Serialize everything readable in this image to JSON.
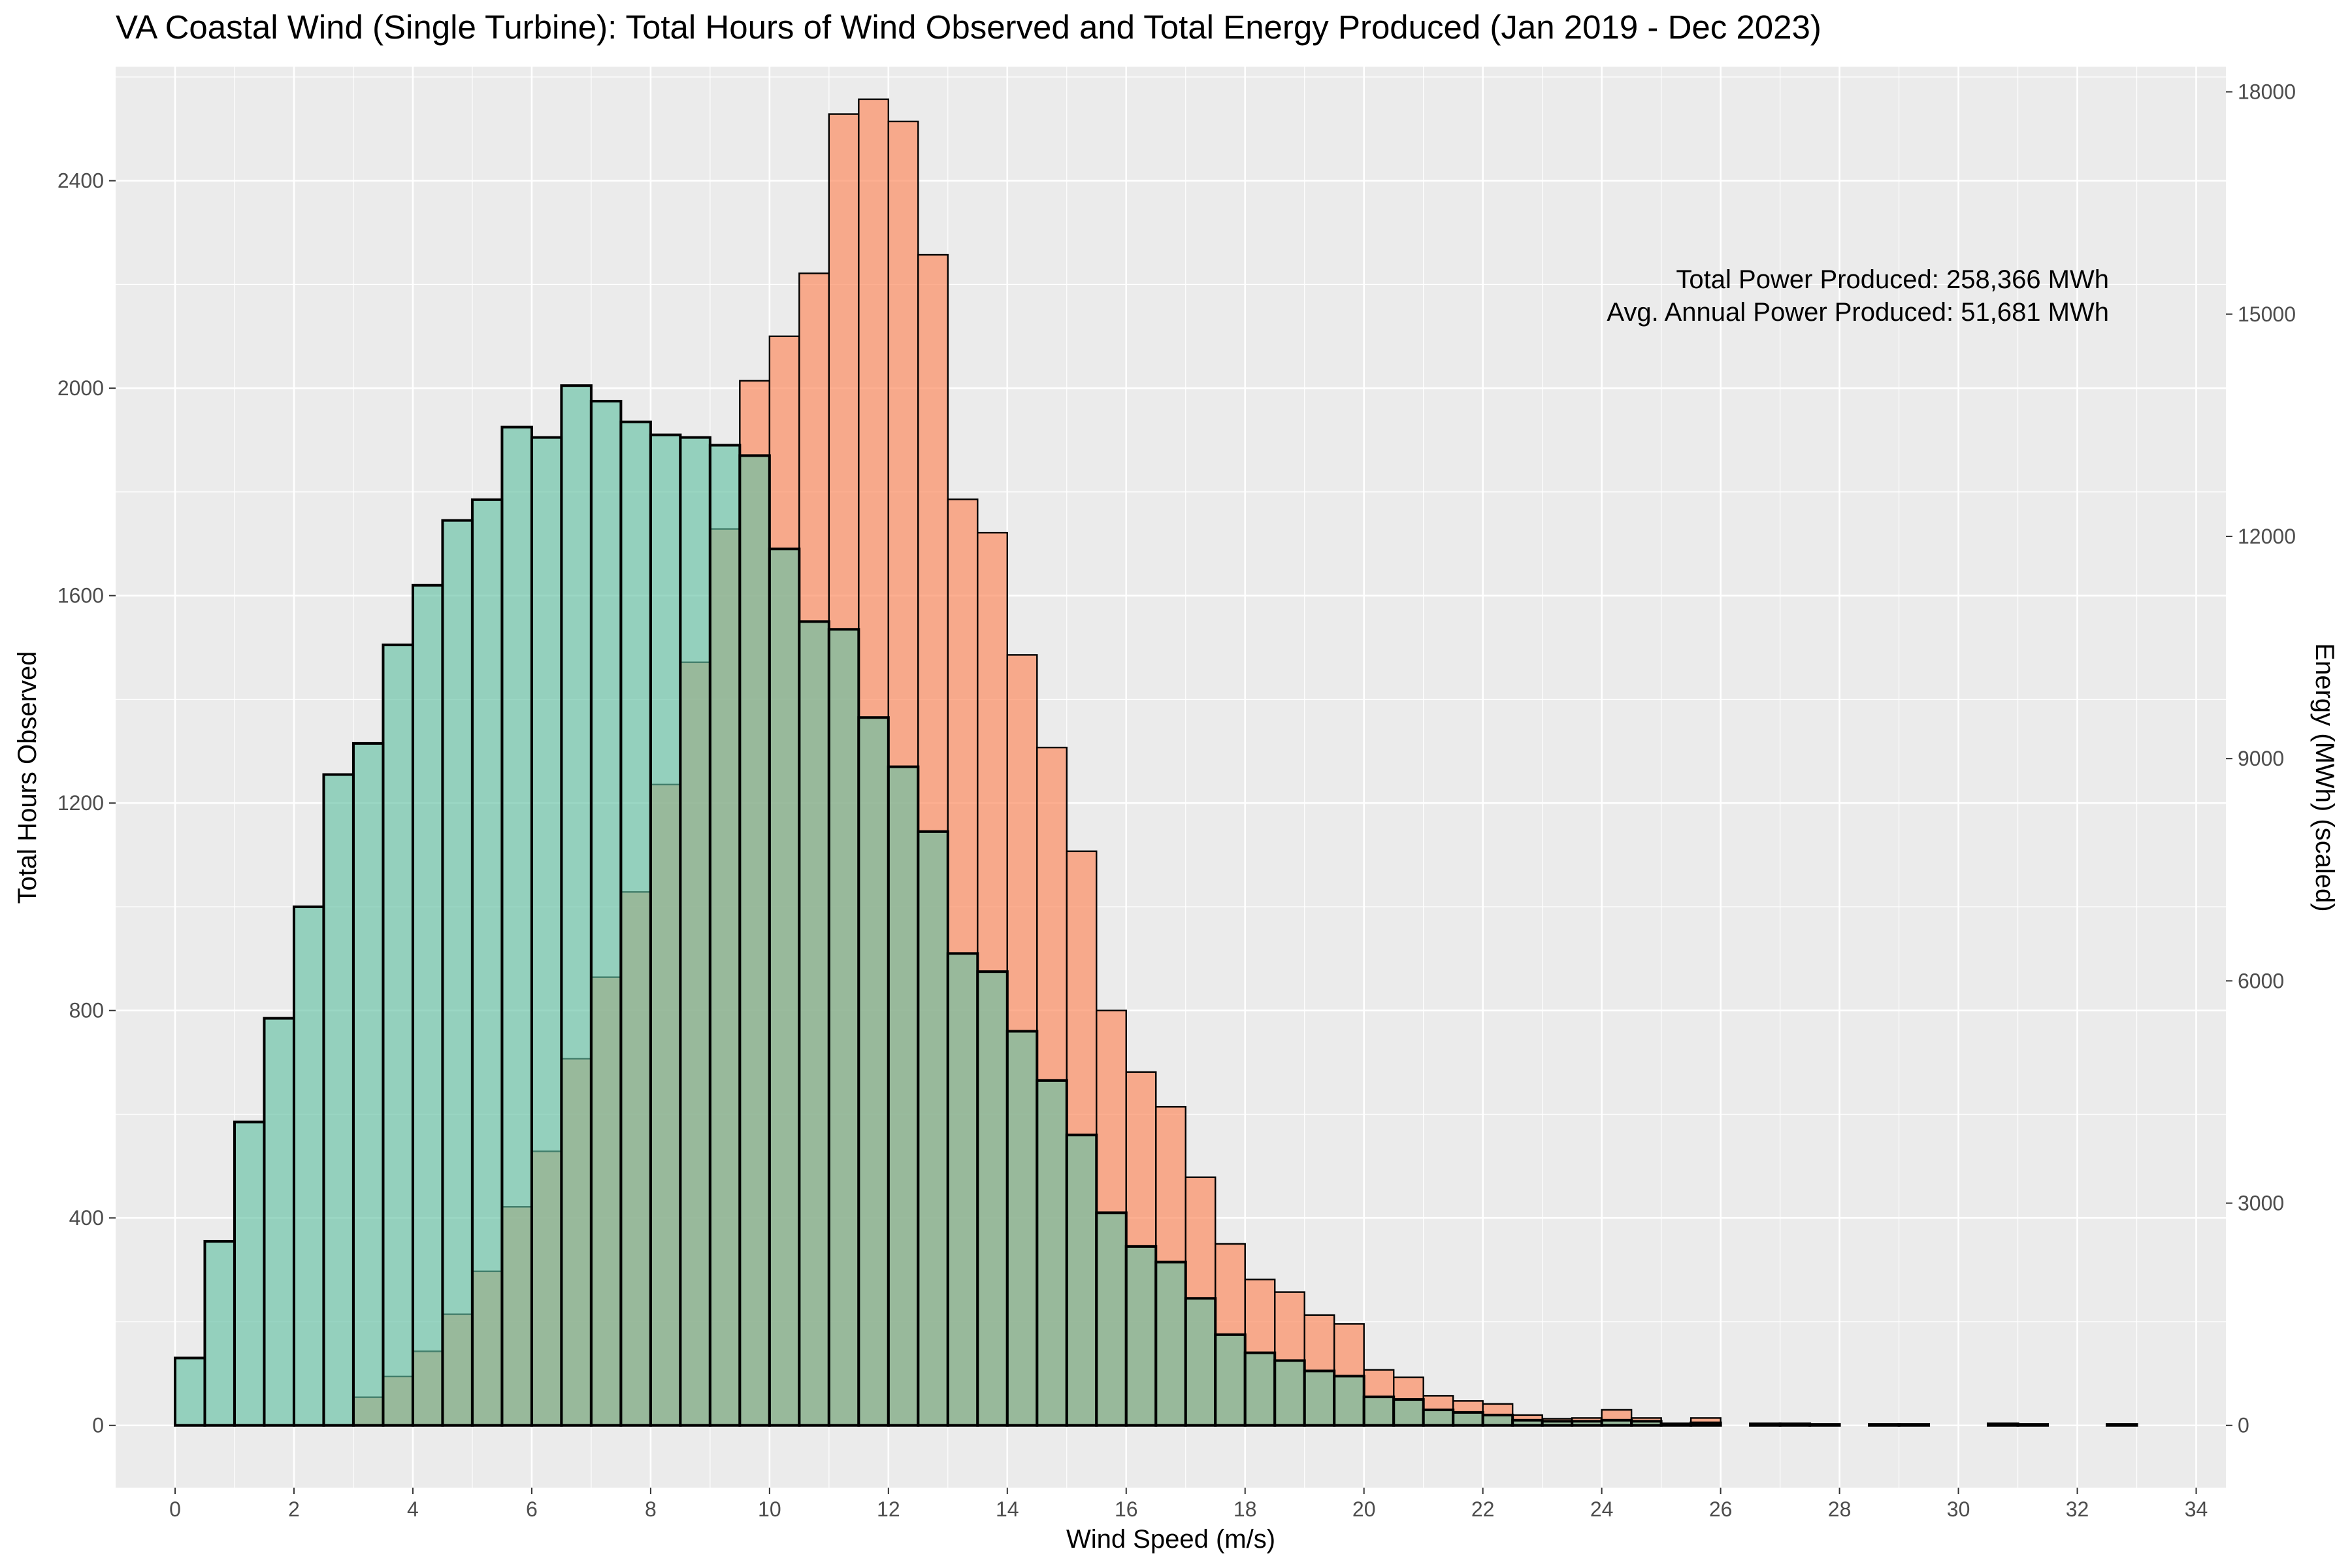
{
  "chart_data": {
    "type": "bar",
    "title": "VA Coastal Wind (Single Turbine): Total Hours of Wind Observed and Total Energy Produced (Jan 2019 - Dec 2023)",
    "xlabel": "Wind Speed (m/s)",
    "ylabel": "Total Hours Observed",
    "y2label": "Energy (MWh) (scaled)",
    "xlim": [
      -1,
      34.5
    ],
    "ylim": [
      -120,
      2620
    ],
    "y2lim": [
      -840,
      18340
    ],
    "x_ticks": [
      "0",
      "2",
      "4",
      "6",
      "8",
      "10",
      "12",
      "14",
      "16",
      "18",
      "20",
      "22",
      "24",
      "26",
      "28",
      "30",
      "32",
      "34"
    ],
    "y_ticks": [
      "0",
      "400",
      "800",
      "1200",
      "1600",
      "2000",
      "2400"
    ],
    "y2_ticks": [
      "0",
      "3000",
      "6000",
      "9000",
      "12000",
      "15000",
      "18000"
    ],
    "grid": true,
    "bin_width": 0.5,
    "series": [
      {
        "axis": "left",
        "color": "#66c2a5",
        "x": [
          0.25,
          0.75,
          1.25,
          1.75,
          2.25,
          2.75,
          3.25,
          3.75,
          4.25,
          4.75,
          5.25,
          5.75,
          6.25,
          6.75,
          7.25,
          7.75,
          8.25,
          8.75,
          9.25,
          9.75,
          10.25,
          10.75,
          11.25,
          11.75,
          12.25,
          12.75,
          13.25,
          13.75,
          14.25,
          14.75,
          15.25,
          15.75,
          16.25,
          16.75,
          17.25,
          17.75,
          18.25,
          18.75,
          19.25,
          19.75,
          20.25,
          20.75,
          21.25,
          21.75,
          22.25,
          22.75,
          23.25,
          23.75,
          24.25,
          24.75,
          25.25,
          25.75,
          26.75,
          27.25,
          27.75,
          28.75,
          29.25,
          30.75,
          31.25,
          32.75
        ],
        "values": [
          130,
          355,
          585,
          785,
          1000,
          1255,
          1315,
          1505,
          1620,
          1745,
          1785,
          1925,
          1905,
          2005,
          1975,
          1935,
          1910,
          1905,
          1890,
          1870,
          1690,
          1550,
          1535,
          1365,
          1270,
          1145,
          910,
          875,
          760,
          665,
          560,
          410,
          345,
          315,
          245,
          175,
          140,
          125,
          105,
          95,
          55,
          50,
          30,
          25,
          20,
          10,
          8,
          8,
          10,
          8,
          3,
          5,
          3,
          3,
          2,
          2,
          2,
          3,
          2,
          2
        ]
      },
      {
        "axis": "right",
        "color": "#fc8d62",
        "x": [
          3.25,
          3.75,
          4.25,
          4.75,
          5.25,
          5.75,
          6.25,
          6.75,
          7.25,
          7.75,
          8.25,
          8.75,
          9.25,
          9.75,
          10.25,
          10.75,
          11.25,
          11.75,
          12.25,
          12.75,
          13.25,
          13.75,
          14.25,
          14.75,
          15.25,
          15.75,
          16.25,
          16.75,
          17.25,
          17.75,
          18.25,
          18.75,
          19.25,
          19.75,
          20.25,
          20.75,
          21.25,
          21.75,
          22.25,
          22.75,
          23.25,
          23.75,
          24.25,
          24.75,
          25.25,
          25.75
        ],
        "values": [
          380,
          660,
          1000,
          1500,
          2080,
          2950,
          3700,
          4950,
          6050,
          7200,
          8650,
          10300,
          12100,
          14100,
          14700,
          15550,
          17700,
          17900,
          17600,
          15800,
          12500,
          12050,
          10400,
          9150,
          7750,
          5600,
          4770,
          4300,
          3350,
          2450,
          1970,
          1800,
          1490,
          1370,
          750,
          650,
          400,
          330,
          290,
          140,
          90,
          100,
          210,
          100,
          20,
          100
        ]
      }
    ],
    "annotations": [
      "Total Power Produced: 258,366 MWh",
      "Avg. Annual Power Produced: 51,681 MWh"
    ]
  }
}
